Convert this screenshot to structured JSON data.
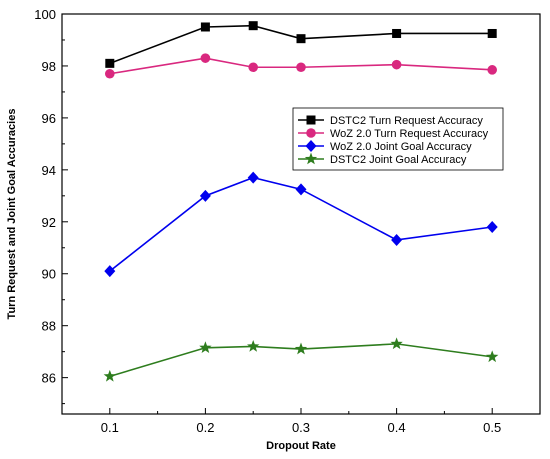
{
  "chart_data": {
    "type": "line",
    "title": "",
    "xlabel": "Dropout Rate",
    "ylabel": "Turn Request and Joint Goal Accuracies",
    "x": [
      0.1,
      0.2,
      0.25,
      0.3,
      0.4,
      0.5
    ],
    "x_ticks": [
      "0.1",
      "0.2",
      "0.3",
      "0.4",
      "0.5"
    ],
    "x_tick_values": [
      0.1,
      0.2,
      0.3,
      0.4,
      0.5
    ],
    "y_ticks": [
      "86",
      "88",
      "90",
      "92",
      "94",
      "96",
      "98",
      "100"
    ],
    "y_tick_values": [
      86,
      88,
      90,
      92,
      94,
      96,
      98,
      100
    ],
    "xlim": [
      0.05,
      0.55
    ],
    "ylim": [
      84.6,
      100
    ],
    "grid": false,
    "legend_position": "right-middle",
    "series": [
      {
        "name": "DSTC2 Turn Request Accuracy",
        "color": "#000000",
        "marker": "square",
        "values": [
          98.1,
          99.5,
          99.55,
          99.05,
          99.25,
          99.25
        ]
      },
      {
        "name": "WoZ 2.0 Turn Request Accuracy",
        "color": "#d9287f",
        "marker": "circle",
        "values": [
          97.7,
          98.3,
          97.95,
          97.95,
          98.05,
          97.85
        ]
      },
      {
        "name": "WoZ 2.0 Joint Goal Accuracy",
        "color": "#0000ee",
        "marker": "diamond",
        "values": [
          90.1,
          93.0,
          93.7,
          93.25,
          91.3,
          91.8
        ]
      },
      {
        "name": "DSTC2 Joint Goal Accuracy",
        "color": "#2e7d1e",
        "marker": "star",
        "values": [
          86.05,
          87.15,
          87.2,
          87.1,
          87.3,
          86.8
        ]
      }
    ]
  }
}
